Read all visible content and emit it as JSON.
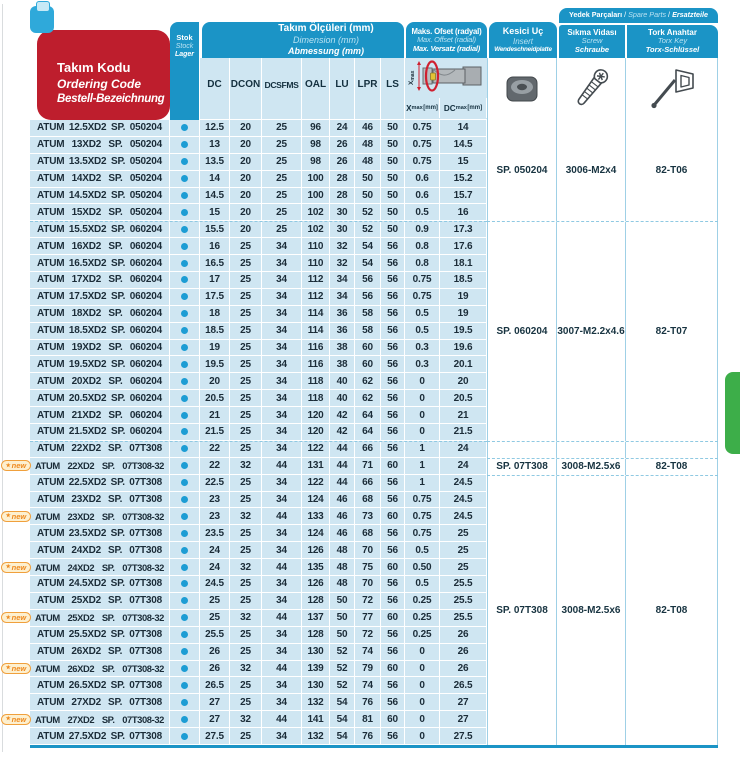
{
  "header": {
    "tool_code": {
      "tr": "Takım Kodu",
      "en": "Ordering Code",
      "de": "Bestell-Bezeichnung"
    },
    "stock": {
      "tr": "Stok",
      "en": "Stock",
      "de": "Lager"
    },
    "dimensions": {
      "tr": "Takım Ölçüleri (mm)",
      "en": "Dimension (mm)",
      "de": "Abmessung (mm)"
    },
    "dim_columns": [
      "DC",
      "DCON",
      "DCSFMS",
      "OAL",
      "LU",
      "LPR",
      "LS"
    ],
    "max_offset": {
      "tr": "Maks. Ofset (radyal)",
      "en": "Max. Offset (radial)",
      "de": "Max. Versatz (radial)"
    },
    "offset_labels": [
      {
        "base": "X",
        "sub": "max",
        "unit": "[mm]"
      },
      {
        "base": "DC",
        "sub": "max",
        "unit": "[mm]"
      }
    ],
    "insert": {
      "tr": "Kesici Uç",
      "en": "Insert",
      "de": "Wendeschneidplatte"
    },
    "spare_parts": {
      "tr": "Yedek Parçaları",
      "en": "Spare Parts",
      "de": "Ersatzteile",
      "sep": " / "
    },
    "screw": {
      "tr": "Sıkma Vidası",
      "en": "Screw",
      "de": "Schraube"
    },
    "torx": {
      "tr": "Tork Anahtar",
      "en": "Torx Key",
      "de": "Torx-Schlüssel"
    }
  },
  "badge_label": "new",
  "colors": {
    "header_blue": "#1b94c6",
    "row_blue": "#cfe6f2",
    "red": "#be1e2d",
    "dot_blue": "#1d9dd4",
    "green_tab": "#3dae49",
    "badge_orange": "#ee8a1f"
  },
  "rows": [
    {
      "code": [
        "ATUM",
        "12.5XD2",
        "SP.",
        "050204"
      ],
      "new": false,
      "stock": true,
      "vals": [
        "12.5",
        "20",
        "25",
        "96",
        "24",
        "46",
        "50",
        "0.75",
        "14"
      ]
    },
    {
      "code": [
        "ATUM",
        "13XD2",
        "SP.",
        "050204"
      ],
      "new": false,
      "stock": true,
      "vals": [
        "13",
        "20",
        "25",
        "98",
        "26",
        "48",
        "50",
        "0.75",
        "14.5"
      ]
    },
    {
      "code": [
        "ATUM",
        "13.5XD2",
        "SP.",
        "050204"
      ],
      "new": false,
      "stock": true,
      "vals": [
        "13.5",
        "20",
        "25",
        "98",
        "26",
        "48",
        "50",
        "0.75",
        "15"
      ]
    },
    {
      "code": [
        "ATUM",
        "14XD2",
        "SP.",
        "050204"
      ],
      "new": false,
      "stock": true,
      "vals": [
        "14",
        "20",
        "25",
        "100",
        "28",
        "50",
        "50",
        "0.6",
        "15.2"
      ]
    },
    {
      "code": [
        "ATUM",
        "14.5XD2",
        "SP.",
        "050204"
      ],
      "new": false,
      "stock": true,
      "vals": [
        "14.5",
        "20",
        "25",
        "100",
        "28",
        "50",
        "50",
        "0.6",
        "15.7"
      ]
    },
    {
      "code": [
        "ATUM",
        "15XD2",
        "SP.",
        "050204"
      ],
      "new": false,
      "stock": true,
      "vals": [
        "15",
        "20",
        "25",
        "102",
        "30",
        "52",
        "50",
        "0.5",
        "16"
      ]
    },
    {
      "code": [
        "ATUM",
        "15.5XD2",
        "SP.",
        "060204"
      ],
      "new": false,
      "stock": true,
      "vals": [
        "15.5",
        "20",
        "25",
        "102",
        "30",
        "52",
        "50",
        "0.9",
        "17.3"
      ]
    },
    {
      "code": [
        "ATUM",
        "16XD2",
        "SP.",
        "060204"
      ],
      "new": false,
      "stock": true,
      "vals": [
        "16",
        "25",
        "34",
        "110",
        "32",
        "54",
        "56",
        "0.8",
        "17.6"
      ]
    },
    {
      "code": [
        "ATUM",
        "16.5XD2",
        "SP.",
        "060204"
      ],
      "new": false,
      "stock": true,
      "vals": [
        "16.5",
        "25",
        "34",
        "110",
        "32",
        "54",
        "56",
        "0.8",
        "18.1"
      ]
    },
    {
      "code": [
        "ATUM",
        "17XD2",
        "SP.",
        "060204"
      ],
      "new": false,
      "stock": true,
      "vals": [
        "17",
        "25",
        "34",
        "112",
        "34",
        "56",
        "56",
        "0.75",
        "18.5"
      ]
    },
    {
      "code": [
        "ATUM",
        "17.5XD2",
        "SP.",
        "060204"
      ],
      "new": false,
      "stock": true,
      "vals": [
        "17.5",
        "25",
        "34",
        "112",
        "34",
        "56",
        "56",
        "0.75",
        "19"
      ]
    },
    {
      "code": [
        "ATUM",
        "18XD2",
        "SP.",
        "060204"
      ],
      "new": false,
      "stock": true,
      "vals": [
        "18",
        "25",
        "34",
        "114",
        "36",
        "58",
        "56",
        "0.5",
        "19"
      ]
    },
    {
      "code": [
        "ATUM",
        "18.5XD2",
        "SP.",
        "060204"
      ],
      "new": false,
      "stock": true,
      "vals": [
        "18.5",
        "25",
        "34",
        "114",
        "36",
        "58",
        "56",
        "0.5",
        "19.5"
      ]
    },
    {
      "code": [
        "ATUM",
        "19XD2",
        "SP.",
        "060204"
      ],
      "new": false,
      "stock": true,
      "vals": [
        "19",
        "25",
        "34",
        "116",
        "38",
        "60",
        "56",
        "0.3",
        "19.6"
      ]
    },
    {
      "code": [
        "ATUM",
        "19.5XD2",
        "SP.",
        "060204"
      ],
      "new": false,
      "stock": true,
      "vals": [
        "19.5",
        "25",
        "34",
        "116",
        "38",
        "60",
        "56",
        "0.3",
        "20.1"
      ]
    },
    {
      "code": [
        "ATUM",
        "20XD2",
        "SP.",
        "060204"
      ],
      "new": false,
      "stock": true,
      "vals": [
        "20",
        "25",
        "34",
        "118",
        "40",
        "62",
        "56",
        "0",
        "20"
      ]
    },
    {
      "code": [
        "ATUM",
        "20.5XD2",
        "SP.",
        "060204"
      ],
      "new": false,
      "stock": true,
      "vals": [
        "20.5",
        "25",
        "34",
        "118",
        "40",
        "62",
        "56",
        "0",
        "20.5"
      ]
    },
    {
      "code": [
        "ATUM",
        "21XD2",
        "SP.",
        "060204"
      ],
      "new": false,
      "stock": true,
      "vals": [
        "21",
        "25",
        "34",
        "120",
        "42",
        "64",
        "56",
        "0",
        "21"
      ]
    },
    {
      "code": [
        "ATUM",
        "21.5XD2",
        "SP.",
        "060204"
      ],
      "new": false,
      "stock": true,
      "vals": [
        "21.5",
        "25",
        "34",
        "120",
        "42",
        "64",
        "56",
        "0",
        "21.5"
      ]
    },
    {
      "code": [
        "ATUM",
        "22XD2",
        "SP.",
        "07T308"
      ],
      "new": false,
      "stock": true,
      "vals": [
        "22",
        "25",
        "34",
        "122",
        "44",
        "66",
        "56",
        "1",
        "24"
      ]
    },
    {
      "code": [
        "ATUM",
        "22XD2",
        "SP.",
        "07T308-32"
      ],
      "new": true,
      "stock": true,
      "vals": [
        "22",
        "32",
        "44",
        "131",
        "44",
        "71",
        "60",
        "1",
        "24"
      ]
    },
    {
      "code": [
        "ATUM",
        "22.5XD2",
        "SP.",
        "07T308"
      ],
      "new": false,
      "stock": true,
      "vals": [
        "22.5",
        "25",
        "34",
        "122",
        "44",
        "66",
        "56",
        "1",
        "24.5"
      ]
    },
    {
      "code": [
        "ATUM",
        "23XD2",
        "SP.",
        "07T308"
      ],
      "new": false,
      "stock": true,
      "vals": [
        "23",
        "25",
        "34",
        "124",
        "46",
        "68",
        "56",
        "0.75",
        "24.5"
      ]
    },
    {
      "code": [
        "ATUM",
        "23XD2",
        "SP.",
        "07T308-32"
      ],
      "new": true,
      "stock": true,
      "vals": [
        "23",
        "32",
        "44",
        "133",
        "46",
        "73",
        "60",
        "0.75",
        "24.5"
      ]
    },
    {
      "code": [
        "ATUM",
        "23.5XD2",
        "SP.",
        "07T308"
      ],
      "new": false,
      "stock": true,
      "vals": [
        "23.5",
        "25",
        "34",
        "124",
        "46",
        "68",
        "56",
        "0.75",
        "25"
      ]
    },
    {
      "code": [
        "ATUM",
        "24XD2",
        "SP.",
        "07T308"
      ],
      "new": false,
      "stock": true,
      "vals": [
        "24",
        "25",
        "34",
        "126",
        "48",
        "70",
        "56",
        "0.5",
        "25"
      ]
    },
    {
      "code": [
        "ATUM",
        "24XD2",
        "SP.",
        "07T308-32"
      ],
      "new": true,
      "stock": true,
      "vals": [
        "24",
        "32",
        "44",
        "135",
        "48",
        "75",
        "60",
        "0.50",
        "25"
      ]
    },
    {
      "code": [
        "ATUM",
        "24.5XD2",
        "SP.",
        "07T308"
      ],
      "new": false,
      "stock": true,
      "vals": [
        "24.5",
        "25",
        "34",
        "126",
        "48",
        "70",
        "56",
        "0.5",
        "25.5"
      ]
    },
    {
      "code": [
        "ATUM",
        "25XD2",
        "SP.",
        "07T308"
      ],
      "new": false,
      "stock": true,
      "vals": [
        "25",
        "25",
        "34",
        "128",
        "50",
        "72",
        "56",
        "0.25",
        "25.5"
      ]
    },
    {
      "code": [
        "ATUM",
        "25XD2",
        "SP.",
        "07T308-32"
      ],
      "new": true,
      "stock": true,
      "vals": [
        "25",
        "32",
        "44",
        "137",
        "50",
        "77",
        "60",
        "0.25",
        "25.5"
      ]
    },
    {
      "code": [
        "ATUM",
        "25.5XD2",
        "SP.",
        "07T308"
      ],
      "new": false,
      "stock": true,
      "vals": [
        "25.5",
        "25",
        "34",
        "128",
        "50",
        "72",
        "56",
        "0.25",
        "26"
      ]
    },
    {
      "code": [
        "ATUM",
        "26XD2",
        "SP.",
        "07T308"
      ],
      "new": false,
      "stock": true,
      "vals": [
        "26",
        "25",
        "34",
        "130",
        "52",
        "74",
        "56",
        "0",
        "26"
      ]
    },
    {
      "code": [
        "ATUM",
        "26XD2",
        "SP.",
        "07T308-32"
      ],
      "new": true,
      "stock": true,
      "vals": [
        "26",
        "32",
        "44",
        "139",
        "52",
        "79",
        "60",
        "0",
        "26"
      ]
    },
    {
      "code": [
        "ATUM",
        "26.5XD2",
        "SP.",
        "07T308"
      ],
      "new": false,
      "stock": true,
      "vals": [
        "26.5",
        "25",
        "34",
        "130",
        "52",
        "74",
        "56",
        "0",
        "26.5"
      ]
    },
    {
      "code": [
        "ATUM",
        "27XD2",
        "SP.",
        "07T308"
      ],
      "new": false,
      "stock": true,
      "vals": [
        "27",
        "25",
        "34",
        "132",
        "54",
        "76",
        "56",
        "0",
        "27"
      ]
    },
    {
      "code": [
        "ATUM",
        "27XD2",
        "SP.",
        "07T308-32"
      ],
      "new": true,
      "stock": true,
      "vals": [
        "27",
        "32",
        "44",
        "141",
        "54",
        "81",
        "60",
        "0",
        "27"
      ]
    },
    {
      "code": [
        "ATUM",
        "27.5XD2",
        "SP.",
        "07T308"
      ],
      "new": false,
      "stock": true,
      "vals": [
        "27.5",
        "25",
        "34",
        "132",
        "54",
        "76",
        "56",
        "0",
        "27.5"
      ]
    }
  ],
  "spare_groups": [
    {
      "start": 0,
      "count": 6,
      "insert": "SP. 050204",
      "screw": "3006-M2x4",
      "torx": "82-T06"
    },
    {
      "start": 6,
      "count": 13,
      "insert": "SP. 060204",
      "screw": "3007-M2.2x4.6",
      "torx": "82-T07"
    },
    {
      "start": 19,
      "count": 1,
      "insert": "",
      "screw": "",
      "torx": ""
    },
    {
      "start": 20,
      "count": 1,
      "insert": "SP. 07T308",
      "screw": "3008-M2.5x6",
      "torx": "82-T08"
    },
    {
      "start": 21,
      "count": 16,
      "insert": "SP. 07T308",
      "screw": "3008-M2.5x6",
      "torx": "82-T08"
    }
  ]
}
